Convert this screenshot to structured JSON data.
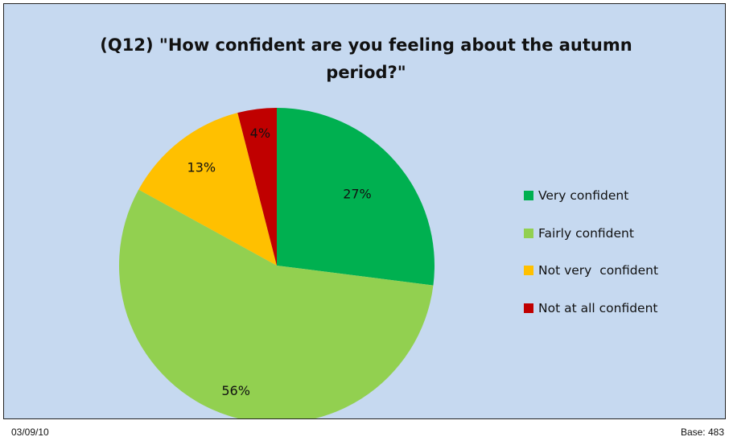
{
  "chart_data": {
    "type": "pie",
    "title_lines": [
      "(Q12) \"How confident are you feeling about the autumn",
      "period?\""
    ],
    "slices": [
      {
        "label": "Very confident",
        "value": 27,
        "display": "27%",
        "color": "#00b050"
      },
      {
        "label": "Fairly confident",
        "value": 56,
        "display": "56%",
        "color": "#92d050"
      },
      {
        "label": "Not very  confident",
        "value": 13,
        "display": "13%",
        "color": "#ffc000"
      },
      {
        "label": "Not at all confident",
        "value": 4,
        "display": "4%",
        "color": "#c00000"
      }
    ],
    "legend_position": "right"
  },
  "footer": {
    "date": "03/09/10",
    "base": "Base: 483"
  }
}
